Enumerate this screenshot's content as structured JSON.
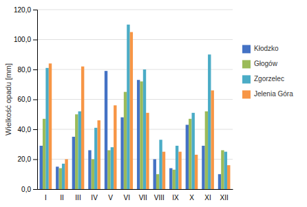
{
  "chart_data": {
    "type": "bar",
    "categories": [
      "I",
      "II",
      "III",
      "IV",
      "V",
      "VI",
      "VII",
      "VIII",
      "IX",
      "X",
      "XI",
      "XII"
    ],
    "series": [
      {
        "name": "Kłodzko",
        "color": "#4472C4",
        "values": [
          29,
          15,
          35,
          26,
          79,
          48,
          73,
          20,
          14,
          43,
          29,
          10
        ]
      },
      {
        "name": "Głogów",
        "color": "#9BBB59",
        "values": [
          47,
          14,
          50,
          20,
          26,
          65,
          72,
          10,
          13,
          47,
          52,
          26
        ]
      },
      {
        "name": "Zgorzelec",
        "color": "#4BACC6",
        "values": [
          81,
          17,
          52,
          41,
          28,
          110,
          80,
          33,
          29,
          51,
          90,
          25
        ]
      },
      {
        "name": "Jelenia Góra",
        "color": "#F79646",
        "values": [
          84,
          20,
          82,
          46,
          56,
          105,
          51,
          25,
          25,
          23,
          66,
          16
        ]
      }
    ],
    "ylabel": "Wielkość opadu [mm]",
    "ylim": [
      0,
      120
    ],
    "yticks": [
      {
        "value": 0,
        "label": "0,0"
      },
      {
        "value": 20,
        "label": "20,0"
      },
      {
        "value": 40,
        "label": "40,0"
      },
      {
        "value": 60,
        "label": "60,0"
      },
      {
        "value": 80,
        "label": "80,0"
      },
      {
        "value": 100,
        "label": "100,0"
      },
      {
        "value": 120,
        "label": "120,0"
      }
    ],
    "grid": true,
    "legend": "right"
  }
}
